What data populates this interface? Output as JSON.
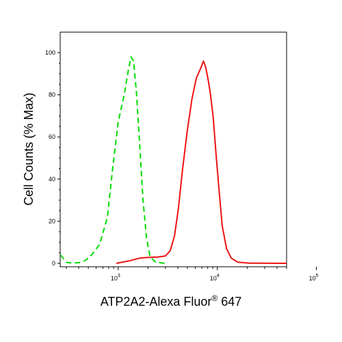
{
  "chart_data": {
    "type": "line",
    "title": "",
    "xlabel": "ATP2A2-Alexa Fluor",
    "xlabel_superscript": "®",
    "xlabel_suffix": " 647",
    "ylabel": "Cell Counts (% Max)",
    "x_scale": "log",
    "xlim": [
      260,
      50000
    ],
    "ylim": [
      0,
      105
    ],
    "y_ticks": [
      0,
      20,
      40,
      60,
      80,
      100
    ],
    "x_ticks": [
      {
        "value": 1000,
        "base": "10",
        "exp": "3"
      },
      {
        "value": 10000,
        "base": "10",
        "exp": "4"
      },
      {
        "value": 100000,
        "base": "10",
        "exp": "5"
      }
    ],
    "grid": false,
    "legend": "none",
    "series": [
      {
        "color": "#00dd00",
        "style": "dashed",
        "points": [
          [
            262,
            4
          ],
          [
            282,
            2
          ],
          [
            302,
            0.5
          ],
          [
            330,
            0.2
          ],
          [
            400,
            0.3
          ],
          [
            470,
            1.5
          ],
          [
            540,
            4
          ],
          [
            650,
            9
          ],
          [
            780,
            22
          ],
          [
            880,
            45
          ],
          [
            1000,
            67
          ],
          [
            1150,
            80
          ],
          [
            1270,
            92
          ],
          [
            1350,
            98
          ],
          [
            1430,
            96
          ],
          [
            1530,
            81
          ],
          [
            1640,
            58
          ],
          [
            1780,
            30
          ],
          [
            1930,
            12
          ],
          [
            2100,
            3
          ],
          [
            2400,
            0.5
          ],
          [
            3000,
            0
          ]
        ]
      },
      {
        "color": "#ee1111",
        "style": "solid",
        "points": [
          [
            960,
            0
          ],
          [
            1300,
            1.2
          ],
          [
            1650,
            2.5
          ],
          [
            2000,
            2.8
          ],
          [
            2500,
            3
          ],
          [
            3000,
            3.5
          ],
          [
            3350,
            6
          ],
          [
            3700,
            13
          ],
          [
            4050,
            26
          ],
          [
            4450,
            44
          ],
          [
            4950,
            62
          ],
          [
            5550,
            78
          ],
          [
            6150,
            88
          ],
          [
            6850,
            93
          ],
          [
            7250,
            96
          ],
          [
            7650,
            93
          ],
          [
            8100,
            87
          ],
          [
            8550,
            80
          ],
          [
            9100,
            69
          ],
          [
            9700,
            52
          ],
          [
            10400,
            35
          ],
          [
            11200,
            18
          ],
          [
            12400,
            7
          ],
          [
            13800,
            2.5
          ],
          [
            16000,
            0.6
          ],
          [
            21000,
            0.1
          ],
          [
            50000,
            0
          ]
        ]
      }
    ]
  }
}
